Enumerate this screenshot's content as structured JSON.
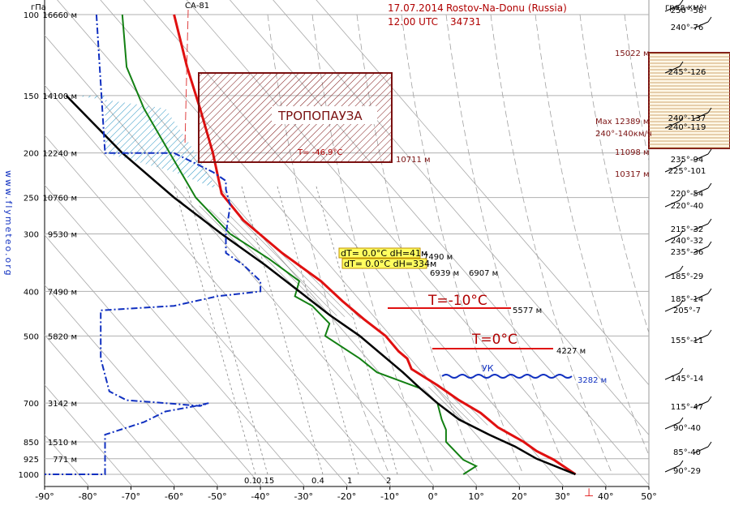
{
  "header": {
    "date": "17.07.2014",
    "station": "Rostov-Na-Donu (Russia)",
    "time": "12.00 UTC",
    "station_id": "34731",
    "pressure_unit": "гПа",
    "wind_unit": "град-км/ч"
  },
  "watermark": "www.flymeteo.org",
  "chart_data": {
    "type": "line",
    "x_axis": {
      "range": [
        -90,
        50
      ],
      "ticks": [
        "-90°",
        "-80°",
        "-70°",
        "-60°",
        "-50°",
        "-40°",
        "-30°",
        "-20°",
        "-10°",
        "0°",
        "10°",
        "20°",
        "30°",
        "40°",
        "50°"
      ]
    },
    "pressure_levels": [
      {
        "p": 100,
        "label": "100",
        "height": "16660 м"
      },
      {
        "p": 150,
        "label": "150",
        "height": "14100 м"
      },
      {
        "p": 200,
        "label": "200",
        "height": "12240 м"
      },
      {
        "p": 250,
        "label": "250",
        "height": "10760 м"
      },
      {
        "p": 300,
        "label": "300",
        "height": "9530 м"
      },
      {
        "p": 400,
        "label": "400",
        "height": "7490 м"
      },
      {
        "p": 500,
        "label": "500",
        "height": "5820 м"
      },
      {
        "p": 700,
        "label": "700",
        "height": "3142 м"
      },
      {
        "p": 850,
        "label": "850",
        "height": "1510 м"
      },
      {
        "p": 925,
        "label": "925",
        "height": "771 м"
      },
      {
        "p": 1000,
        "label": "1000",
        "height": ""
      }
    ],
    "series": [
      {
        "key": "temperature",
        "color": "#e01010",
        "points": [
          [
            100,
            -60
          ],
          [
            130,
            -57
          ],
          [
            160,
            -54
          ],
          [
            200,
            -51
          ],
          [
            245,
            -49
          ],
          [
            280,
            -44
          ],
          [
            330,
            -35
          ],
          [
            380,
            -26
          ],
          [
            420,
            -21
          ],
          [
            460,
            -16
          ],
          [
            500,
            -11
          ],
          [
            540,
            -8
          ],
          [
            560,
            -6
          ],
          [
            590,
            -5
          ],
          [
            640,
            1
          ],
          [
            690,
            6
          ],
          [
            735,
            11
          ],
          [
            790,
            15
          ],
          [
            850,
            21
          ],
          [
            890,
            24
          ],
          [
            930,
            28
          ],
          [
            1000,
            33
          ]
        ]
      },
      {
        "key": "dewpoint",
        "color": "#138013",
        "points": [
          [
            100,
            -72
          ],
          [
            130,
            -71
          ],
          [
            160,
            -67
          ],
          [
            200,
            -61
          ],
          [
            250,
            -55
          ],
          [
            300,
            -47
          ],
          [
            340,
            -38
          ],
          [
            380,
            -31
          ],
          [
            410,
            -32
          ],
          [
            430,
            -28
          ],
          [
            470,
            -24
          ],
          [
            500,
            -25
          ],
          [
            560,
            -17
          ],
          [
            600,
            -13
          ],
          [
            650,
            -3
          ],
          [
            700,
            1
          ],
          [
            760,
            2
          ],
          [
            800,
            3
          ],
          [
            850,
            3
          ],
          [
            930,
            7
          ],
          [
            960,
            10
          ],
          [
            1000,
            7
          ]
        ]
      },
      {
        "key": "parcel",
        "color": "#000000",
        "points": [
          [
            150,
            -85
          ],
          [
            200,
            -72
          ],
          [
            250,
            -60
          ],
          [
            300,
            -49
          ],
          [
            350,
            -39
          ],
          [
            400,
            -31
          ],
          [
            450,
            -24
          ],
          [
            500,
            -17
          ],
          [
            600,
            -7
          ],
          [
            650,
            -3
          ],
          [
            700,
            1
          ],
          [
            760,
            6
          ],
          [
            820,
            13
          ],
          [
            870,
            19
          ],
          [
            925,
            24
          ],
          [
            1000,
            33
          ]
        ]
      },
      {
        "key": "humidity",
        "color": "#1030c0",
        "points": [
          [
            100,
            -78
          ],
          [
            200,
            -76
          ],
          [
            200,
            -60
          ],
          [
            220,
            -51
          ],
          [
            230,
            -48
          ],
          [
            240,
            -48
          ],
          [
            260,
            -47
          ],
          [
            300,
            -48
          ],
          [
            330,
            -48
          ],
          [
            350,
            -44
          ],
          [
            380,
            -40
          ],
          [
            400,
            -40
          ],
          [
            410,
            -50
          ],
          [
            430,
            -60
          ],
          [
            440,
            -77
          ],
          [
            560,
            -77
          ],
          [
            660,
            -75
          ],
          [
            690,
            -71
          ],
          [
            700,
            -62
          ],
          [
            710,
            -54
          ],
          [
            700,
            -52
          ],
          [
            710,
            -55
          ],
          [
            730,
            -62
          ],
          [
            770,
            -67
          ],
          [
            820,
            -76
          ],
          [
            1000,
            -76
          ],
          [
            1000,
            -98
          ]
        ]
      }
    ],
    "isobar_lines_temp_range": [
      -90,
      50
    ],
    "mixing_ratio_labels": [
      "0.1",
      "0.15",
      "0.4",
      "1",
      "2"
    ],
    "annotations": {
      "tropopause_label": "ТРОПОПАУЗА",
      "tropopause_temp": "T= -46.9°C",
      "tropopause_base": "10711 м",
      "ca_label": "СА-81",
      "minus10_label": "T=-10°C",
      "minus10_height": "5577 м",
      "zero_label": "T=0°C",
      "zero_height": "4227 м",
      "uk_label": "УК",
      "uk_height": "3282 м",
      "box1": "dT= 0.0°C dH=41м",
      "box1_height": "7490 м",
      "box2": "dT= 0.0°C dH=334м",
      "box2_height_a": "6939 м",
      "box2_height_b": "6907 м"
    },
    "right_labels": {
      "top": "15022 м",
      "max": "Max 12389 м",
      "max_wind": "240°-140км/ч",
      "bottom": "11098 м",
      "extra": "10317 м"
    },
    "winds": [
      "250°-58",
      "240°-76",
      "245°-126",
      "240°-137",
      "240°-119",
      "235°-94",
      "225°-101",
      "220°-54",
      "220°-40",
      "215°-32",
      "240°-32",
      "235°-36",
      "185°-29",
      "185°-14",
      "205°-7",
      "155°-11",
      "145°-14",
      "115°-47",
      "90°-40",
      "85°-40",
      "90°-29"
    ]
  }
}
